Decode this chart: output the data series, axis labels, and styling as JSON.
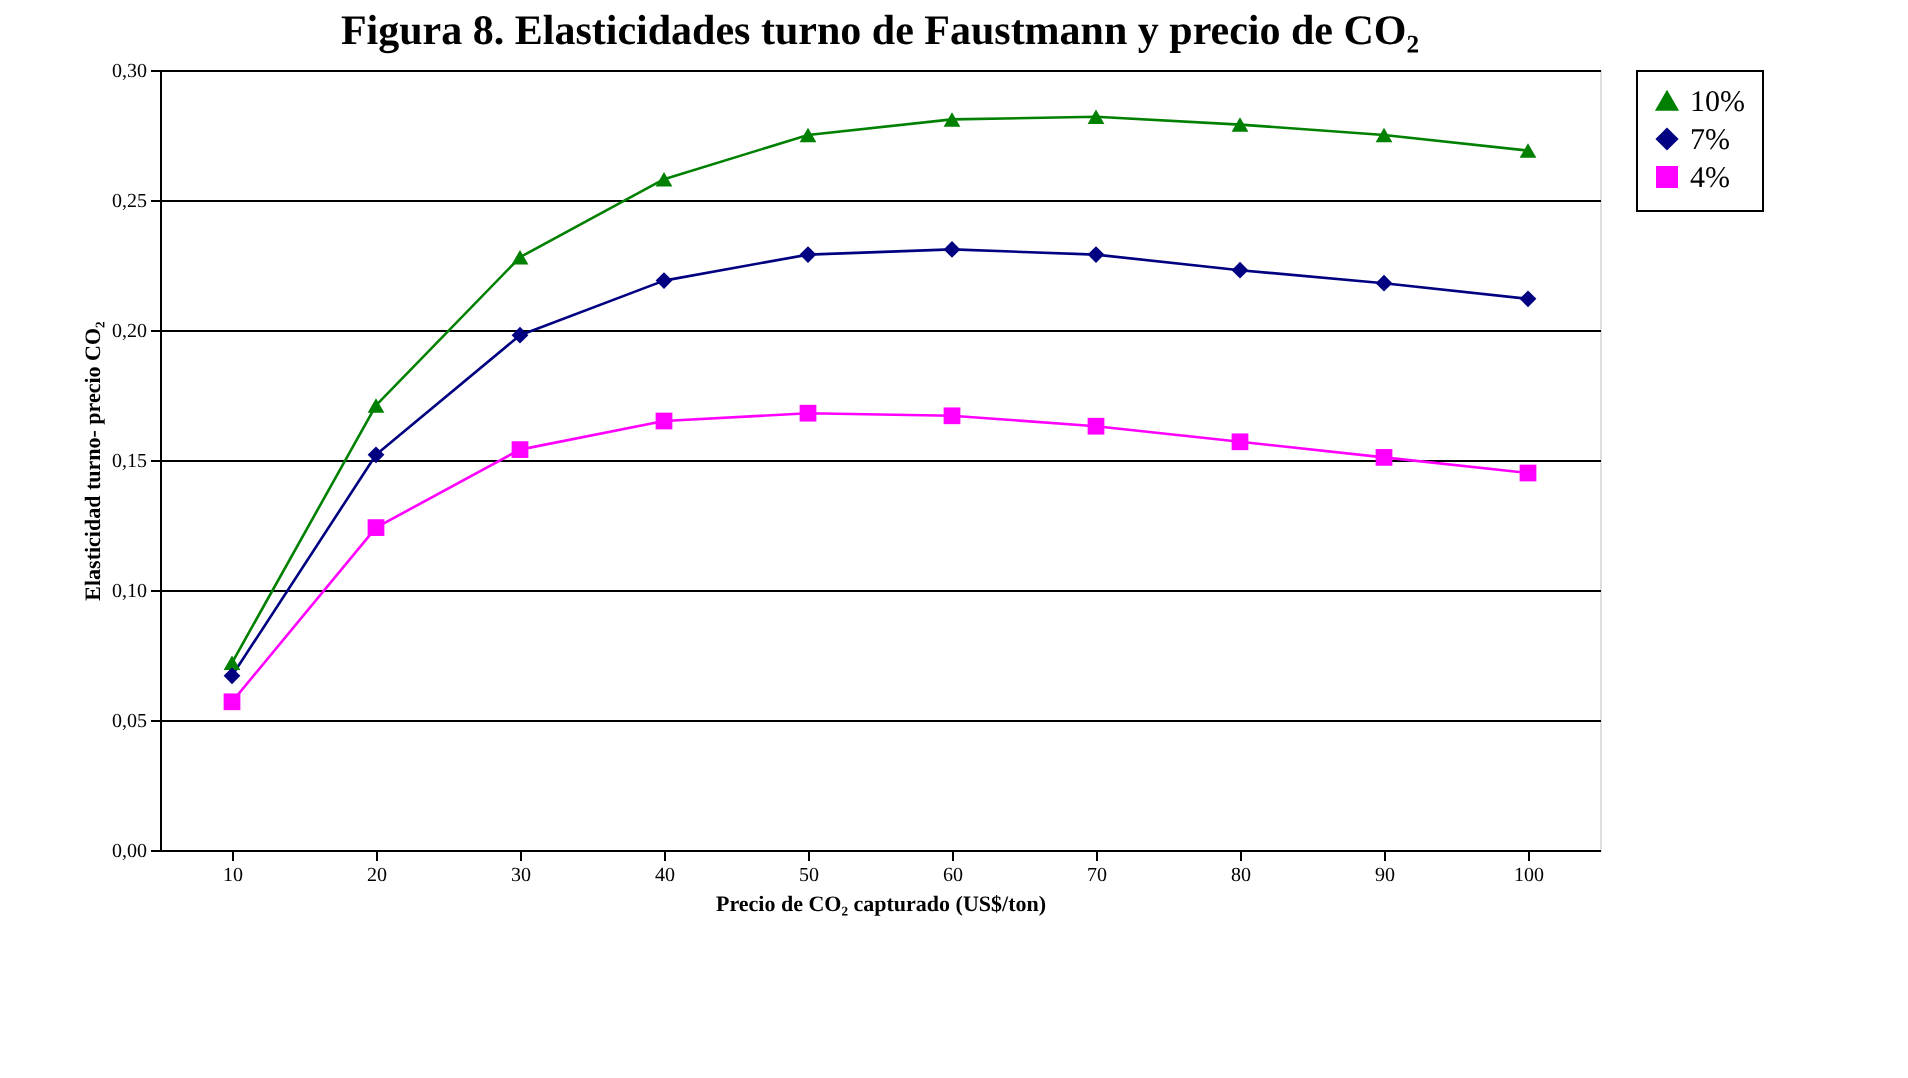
{
  "chart_data": {
    "type": "line",
    "title": "Figura 8. Elasticidades turno de Faustmann y precio de CO₂",
    "xlabel": "Precio de CO₂ capturado (US$/ton)",
    "ylabel": "Elasticidad turno- precio CO₂",
    "categories": [
      "10",
      "20",
      "30",
      "40",
      "50",
      "60",
      "70",
      "80",
      "90",
      "100"
    ],
    "series": [
      {
        "name": "10%",
        "color": "#008000",
        "marker": "triangle",
        "values": [
          0.072,
          0.171,
          0.228,
          0.258,
          0.275,
          0.281,
          0.282,
          0.279,
          0.275,
          0.269
        ]
      },
      {
        "name": "7%",
        "color": "#000080",
        "marker": "diamond",
        "values": [
          0.067,
          0.152,
          0.198,
          0.219,
          0.229,
          0.231,
          0.229,
          0.223,
          0.218,
          0.212
        ]
      },
      {
        "name": "4%",
        "color": "#ff00ff",
        "marker": "square",
        "values": [
          0.057,
          0.124,
          0.154,
          0.165,
          0.168,
          0.167,
          0.163,
          0.157,
          0.151,
          0.145
        ]
      }
    ],
    "ylim": [
      0,
      0.3
    ],
    "yticks": [
      {
        "value": 0,
        "label": "0,00"
      },
      {
        "value": 0.05,
        "label": "0,05"
      },
      {
        "value": 0.1,
        "label": "0,10"
      },
      {
        "value": 0.15,
        "label": "0,15"
      },
      {
        "value": 0.2,
        "label": "0,20"
      },
      {
        "value": 0.25,
        "label": "0,25"
      },
      {
        "value": 0.3,
        "label": "0,30"
      }
    ],
    "grid": "y",
    "legend": "right"
  }
}
